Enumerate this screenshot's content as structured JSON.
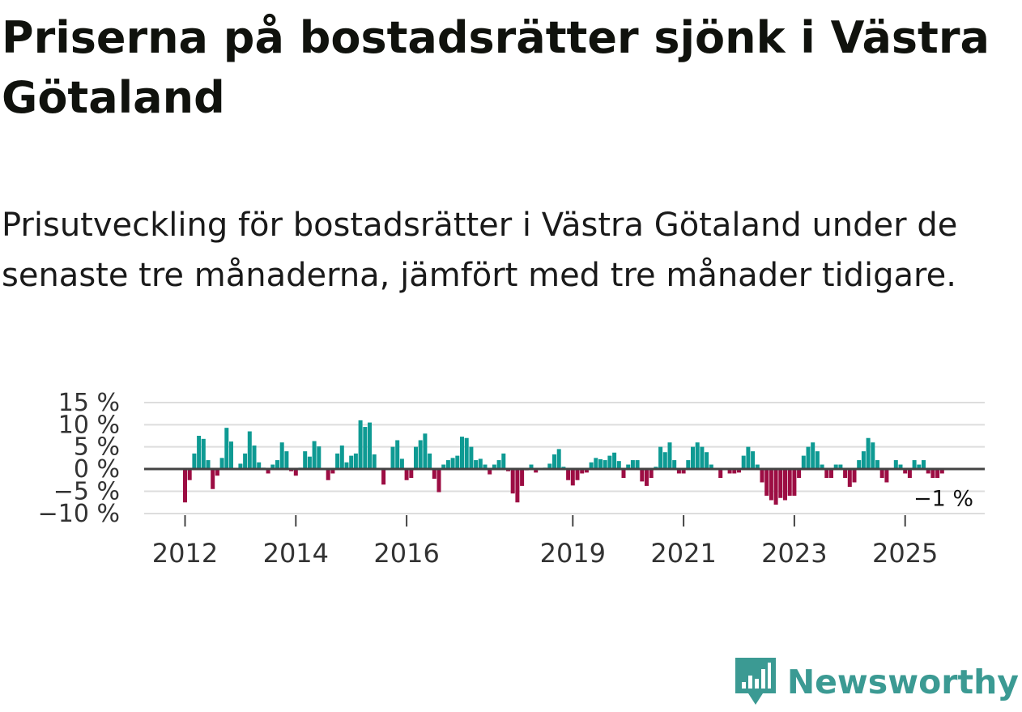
{
  "title": "Priserna på bostadsrätter sjönk i Västra Götaland",
  "subtitle": "Prisutveckling för bostadsrätter i Västra Götaland under de senaste tre månaderna, jämfört med tre månader tidigare.",
  "brand": {
    "name": "Newsworthy",
    "icon": "newsworthy-logo-icon",
    "color": "#3b9a93"
  },
  "colors": {
    "positive": "#0e9a93",
    "negative": "#9c0d43",
    "zero_line": "#444444",
    "grid": "#dddddd"
  },
  "chart_data": {
    "type": "bar",
    "title": "Prisutveckling för bostadsrätter i Västra Götaland",
    "ylabel": "",
    "xlabel": "",
    "ylim": [
      -10,
      15
    ],
    "y_ticks": [
      {
        "value": 15,
        "label": "15 %"
      },
      {
        "value": 10,
        "label": "10 %"
      },
      {
        "value": 5,
        "label": "5 %"
      },
      {
        "value": 0,
        "label": "0 %"
      },
      {
        "value": -5,
        "label": "−5 %"
      },
      {
        "value": -10,
        "label": "−10 %"
      }
    ],
    "x_ticks": [
      {
        "month_index": 0,
        "label": "2012"
      },
      {
        "month_index": 24,
        "label": "2014"
      },
      {
        "month_index": 48,
        "label": "2016"
      },
      {
        "month_index": 84,
        "label": "2019"
      },
      {
        "month_index": 108,
        "label": "2021"
      },
      {
        "month_index": 132,
        "label": "2023"
      },
      {
        "month_index": 156,
        "label": "2025"
      }
    ],
    "start": "2012-01",
    "frequency": "monthly",
    "grid": true,
    "last_value_label": "−1 %",
    "values": [
      -7.5,
      -2.5,
      3.5,
      7.5,
      6.8,
      2,
      -4.5,
      -1.5,
      2.5,
      9.3,
      6.2,
      0,
      1.2,
      3.5,
      8.5,
      5.3,
      1.5,
      0.3,
      -1,
      1,
      2,
      6,
      4,
      -0.5,
      -1.5,
      0.3,
      4,
      2.8,
      6.3,
      5.1,
      0.2,
      -2.5,
      -1,
      3.5,
      5.3,
      1.5,
      3,
      3.5,
      11,
      9.5,
      10.5,
      3.3,
      0,
      -3.5,
      0,
      5,
      6.5,
      2.3,
      -2.5,
      -2,
      5,
      6.5,
      8,
      3.5,
      -2.2,
      -5.2,
      1,
      2,
      2.5,
      3,
      7.3,
      7,
      5,
      2,
      2.3,
      1,
      -1.2,
      1,
      2,
      3.5,
      -0.5,
      -5.5,
      -7.5,
      -3.8,
      -0.3,
      1,
      -0.8,
      -0.2,
      0.3,
      1.2,
      3.3,
      4.5,
      0.5,
      -2.5,
      -3.7,
      -2.5,
      -1,
      -0.8,
      1.5,
      2.5,
      2.2,
      2,
      3,
      3.7,
      1.8,
      -2,
      1,
      2,
      2,
      -2.8,
      -3.8,
      -2,
      0.5,
      5,
      3.8,
      6,
      2,
      -1,
      -1,
      2,
      5,
      6,
      5,
      3.8,
      1,
      0,
      -2,
      0,
      -1,
      -1,
      -0.8,
      3,
      5,
      4,
      1,
      -3,
      -6,
      -7,
      -8,
      -6.5,
      -7,
      -6,
      -6,
      -2,
      3,
      5,
      6,
      4,
      1,
      -2,
      -2,
      1,
      1,
      -2,
      -4,
      -3,
      2,
      4,
      7,
      6,
      2,
      -2,
      -3,
      0,
      2,
      1,
      -1,
      -2,
      2,
      1,
      2,
      -1,
      -2,
      -2,
      -1
    ]
  }
}
